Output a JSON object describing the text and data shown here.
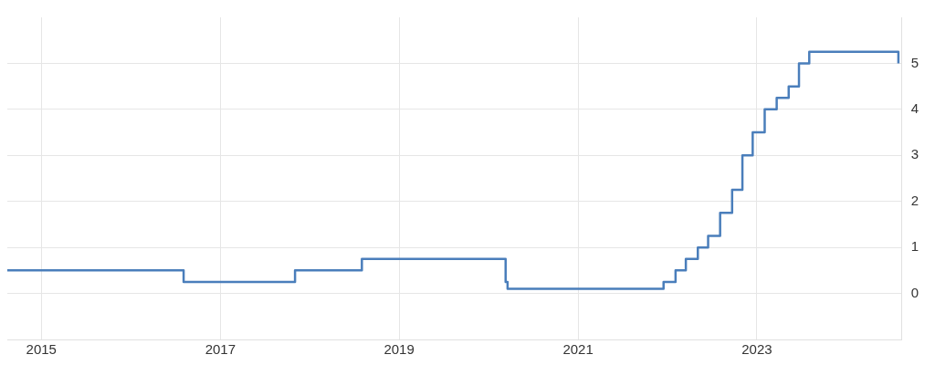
{
  "chart_data": {
    "type": "step",
    "x": [
      "2014-08-15",
      "2016-08-04",
      "2017-11-02",
      "2018-08-02",
      "2020-03-11",
      "2020-03-19",
      "2021-12-16",
      "2022-02-03",
      "2022-03-17",
      "2022-05-05",
      "2022-06-16",
      "2022-08-04",
      "2022-09-22",
      "2022-11-03",
      "2022-12-15",
      "2023-02-02",
      "2023-03-23",
      "2023-05-11",
      "2023-06-22",
      "2023-08-03",
      "2024-08-01"
    ],
    "series": [
      {
        "color": "#4a7ebb",
        "values": [
          0.5,
          0.25,
          0.5,
          0.75,
          0.25,
          0.1,
          0.25,
          0.5,
          0.75,
          1.0,
          1.25,
          1.75,
          2.25,
          3.0,
          3.5,
          4.0,
          4.25,
          4.5,
          5.0,
          5.25,
          5.0
        ]
      }
    ],
    "xlim": [
      "2014-08-15",
      "2024-08-15"
    ],
    "xticks": [
      "2015",
      "2017",
      "2019",
      "2021",
      "2023"
    ],
    "ylim": [
      -1,
      6
    ],
    "yticks": [
      0,
      1,
      2,
      3,
      4,
      5
    ],
    "grid": true,
    "legend": false,
    "marker": "none",
    "line_style": "solid"
  }
}
